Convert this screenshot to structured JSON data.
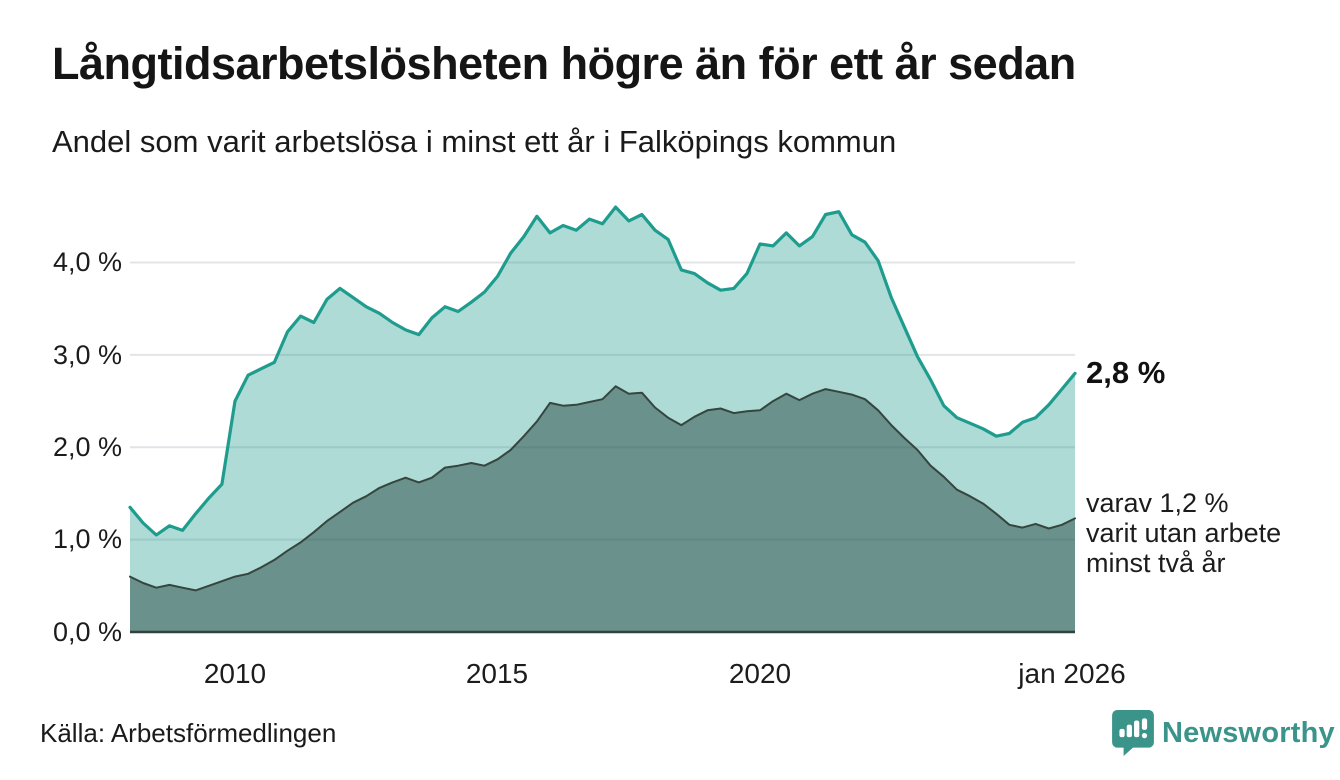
{
  "header": {
    "title": "Långtidsarbetslösheten högre än för ett år sedan",
    "subtitle": "Andel som varit arbetslösa i minst ett år i Falköpings kommun"
  },
  "footer": {
    "source": "Källa: Arbetsförmedlingen",
    "brand": "Newsworthy",
    "brand_color": "#3A948A"
  },
  "chart_data": {
    "type": "area",
    "title": "Långtidsarbetslösheten högre än för ett år sedan",
    "subtitle": "Andel som varit arbetslösa i minst ett år i Falköpings kommun",
    "unit": "%",
    "grid": true,
    "xlim": [
      2008,
      2026
    ],
    "ylim": [
      0,
      4.7
    ],
    "yticks": [
      {
        "label": "0,0 %",
        "value": 0
      },
      {
        "label": "1,0 %",
        "value": 1
      },
      {
        "label": "2,0 %",
        "value": 2
      },
      {
        "label": "3,0 %",
        "value": 3
      },
      {
        "label": "4,0 %",
        "value": 4
      }
    ],
    "xticks": [
      {
        "label": "2010",
        "x": 2010
      },
      {
        "label": "2015",
        "x": 2015
      },
      {
        "label": "2020",
        "x": 2020
      },
      {
        "label": "jan 2026",
        "x": 2026
      }
    ],
    "x": [
      2008,
      2008.25,
      2008.5,
      2008.75,
      2009,
      2009.25,
      2009.5,
      2009.75,
      2010,
      2010.25,
      2010.5,
      2010.75,
      2011,
      2011.25,
      2011.5,
      2011.75,
      2012,
      2012.25,
      2012.5,
      2012.75,
      2013,
      2013.25,
      2013.5,
      2013.75,
      2014,
      2014.25,
      2014.5,
      2014.75,
      2015,
      2015.25,
      2015.5,
      2015.75,
      2016,
      2016.25,
      2016.5,
      2016.75,
      2017,
      2017.25,
      2017.5,
      2017.75,
      2018,
      2018.25,
      2018.5,
      2018.75,
      2019,
      2019.25,
      2019.5,
      2019.75,
      2020,
      2020.25,
      2020.5,
      2020.75,
      2021,
      2021.25,
      2021.5,
      2021.75,
      2022,
      2022.25,
      2022.5,
      2022.75,
      2023,
      2023.25,
      2023.5,
      2023.75,
      2024,
      2024.25,
      2024.5,
      2024.75,
      2025,
      2025.25,
      2025.5,
      2025.75,
      2026
    ],
    "series": [
      {
        "name": "Arbetslösa minst ett år",
        "line_color": "#1E9C8D",
        "fill_color": "rgba(30,156,141,0.36)",
        "line_width": 3.2,
        "values": [
          1.35,
          1.18,
          1.05,
          1.15,
          1.1,
          1.28,
          1.45,
          1.6,
          2.5,
          2.78,
          2.85,
          2.92,
          3.25,
          3.42,
          3.35,
          3.6,
          3.72,
          3.62,
          3.52,
          3.45,
          3.35,
          3.27,
          3.22,
          3.4,
          3.52,
          3.47,
          3.57,
          3.68,
          3.85,
          4.1,
          4.28,
          4.5,
          4.32,
          4.4,
          4.35,
          4.47,
          4.42,
          4.6,
          4.45,
          4.52,
          4.35,
          4.25,
          3.92,
          3.88,
          3.78,
          3.7,
          3.72,
          3.88,
          4.2,
          4.18,
          4.32,
          4.18,
          4.28,
          4.52,
          4.55,
          4.3,
          4.22,
          4.02,
          3.62,
          3.3,
          2.98,
          2.73,
          2.45,
          2.32,
          2.26,
          2.2,
          2.12,
          2.15,
          2.27,
          2.32,
          2.46,
          2.63,
          2.8
        ]
      },
      {
        "name": "Arbetslösa minst två år",
        "line_color": "#35463F",
        "fill_color": "rgba(25,55,50,0.45)",
        "line_width": 2,
        "values": [
          0.6,
          0.53,
          0.48,
          0.51,
          0.48,
          0.45,
          0.5,
          0.55,
          0.6,
          0.63,
          0.7,
          0.78,
          0.88,
          0.97,
          1.08,
          1.2,
          1.3,
          1.4,
          1.47,
          1.56,
          1.62,
          1.67,
          1.62,
          1.67,
          1.78,
          1.8,
          1.83,
          1.8,
          1.87,
          1.97,
          2.12,
          2.28,
          2.48,
          2.45,
          2.46,
          2.49,
          2.52,
          2.66,
          2.58,
          2.59,
          2.43,
          2.32,
          2.24,
          2.33,
          2.4,
          2.42,
          2.37,
          2.39,
          2.4,
          2.5,
          2.58,
          2.51,
          2.58,
          2.63,
          2.6,
          2.57,
          2.52,
          2.4,
          2.24,
          2.1,
          1.97,
          1.8,
          1.68,
          1.54,
          1.47,
          1.39,
          1.28,
          1.16,
          1.13,
          1.17,
          1.12,
          1.16,
          1.23
        ]
      }
    ],
    "annotations": {
      "latest_value_label": "2,8 %",
      "note_lines": [
        "varav 1,2 %",
        "varit utan arbete",
        "minst två år"
      ]
    },
    "colors": {
      "gridline": "#E2E4E8",
      "axis_line": "#33403D",
      "teal_line": "#1E9C8D",
      "light_fill": "#AEDBD6",
      "dark_fill": "#6F9A93"
    }
  }
}
